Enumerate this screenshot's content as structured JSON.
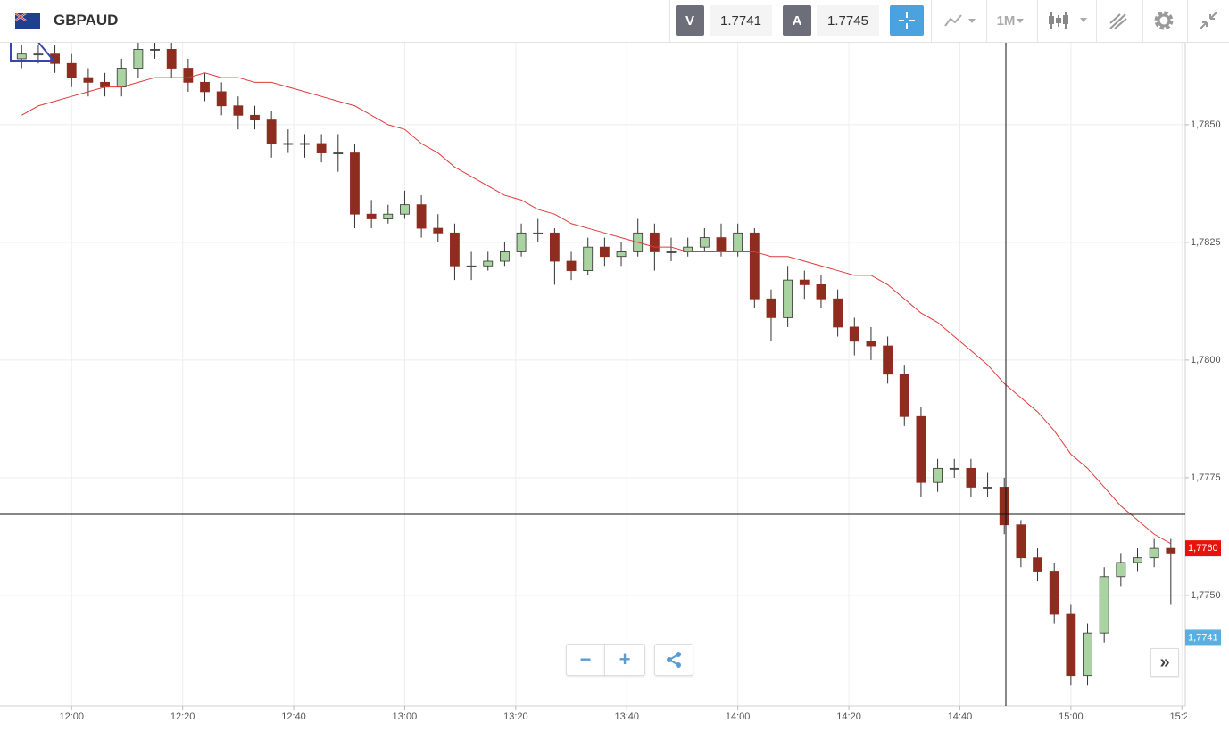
{
  "toolbar": {
    "symbol": "GBPAUD",
    "bid_label": "V",
    "bid": "1.7741",
    "ask_label": "A",
    "ask": "1.7745",
    "timeframe": "1M"
  },
  "chart_data": {
    "type": "candlestick",
    "x": [
      711,
      714,
      717,
      720,
      723,
      726,
      729,
      732,
      735,
      738,
      741,
      744,
      747,
      750,
      753,
      756,
      759,
      762,
      765,
      768,
      771,
      774,
      777,
      780,
      783,
      786,
      789,
      792,
      795,
      798,
      801,
      804,
      807,
      810,
      813,
      816,
      819,
      822,
      825,
      828,
      831,
      834,
      837,
      840,
      843,
      846,
      849,
      852,
      855,
      858,
      861,
      864,
      867,
      870,
      873,
      876,
      879,
      882,
      885,
      888,
      891,
      894,
      897,
      900,
      903,
      906,
      909,
      912,
      915,
      918
    ],
    "open": [
      1.7864,
      1.7865,
      1.7865,
      1.7863,
      1.786,
      1.7859,
      1.7858,
      1.7862,
      1.7866,
      1.7866,
      1.7862,
      1.7859,
      1.7857,
      1.7854,
      1.7852,
      1.7851,
      1.7846,
      1.7846,
      1.7846,
      1.7844,
      1.7844,
      1.7831,
      1.783,
      1.7831,
      1.7833,
      1.7828,
      1.7827,
      1.782,
      1.782,
      1.7821,
      1.7823,
      1.7827,
      1.7827,
      1.7821,
      1.7819,
      1.7824,
      1.7822,
      1.7823,
      1.7827,
      1.7823,
      1.7823,
      1.7824,
      1.7826,
      1.7823,
      1.7827,
      1.7813,
      1.7809,
      1.7817,
      1.7816,
      1.7813,
      1.7807,
      1.7804,
      1.7803,
      1.7797,
      1.7788,
      1.7774,
      1.7777,
      1.7777,
      1.7773,
      1.7773,
      1.7765,
      1.7758,
      1.7755,
      1.7746,
      1.7733,
      1.7742,
      1.7754,
      1.7757,
      1.7758,
      1.776
    ],
    "high": [
      1.7867,
      1.7867,
      1.7867,
      1.7865,
      1.7862,
      1.7861,
      1.7864,
      1.7868,
      1.7868,
      1.7868,
      1.7864,
      1.7861,
      1.7859,
      1.7856,
      1.7854,
      1.7853,
      1.7849,
      1.7848,
      1.7848,
      1.7848,
      1.7846,
      1.7834,
      1.7833,
      1.7836,
      1.7835,
      1.7831,
      1.7829,
      1.7823,
      1.7823,
      1.7825,
      1.7829,
      1.783,
      1.7828,
      1.7823,
      1.7826,
      1.7826,
      1.7825,
      1.783,
      1.7829,
      1.7826,
      1.7826,
      1.7828,
      1.7829,
      1.7829,
      1.7828,
      1.7815,
      1.782,
      1.7819,
      1.7818,
      1.7815,
      1.7809,
      1.7807,
      1.7805,
      1.7799,
      1.779,
      1.7779,
      1.7779,
      1.7779,
      1.7776,
      1.7775,
      1.7766,
      1.776,
      1.7757,
      1.7748,
      1.7744,
      1.7756,
      1.7759,
      1.776,
      1.7762,
      1.7762
    ],
    "low": [
      1.7862,
      1.7863,
      1.7861,
      1.7858,
      1.7856,
      1.7856,
      1.7856,
      1.786,
      1.7864,
      1.786,
      1.7857,
      1.7855,
      1.7852,
      1.7849,
      1.7849,
      1.7843,
      1.7844,
      1.7843,
      1.7842,
      1.784,
      1.7828,
      1.7828,
      1.7829,
      1.783,
      1.7826,
      1.7825,
      1.7817,
      1.7817,
      1.7819,
      1.782,
      1.7822,
      1.7825,
      1.7816,
      1.7817,
      1.7818,
      1.782,
      1.782,
      1.7822,
      1.7819,
      1.7821,
      1.7822,
      1.7823,
      1.7822,
      1.7822,
      1.7811,
      1.7804,
      1.7807,
      1.7813,
      1.7811,
      1.7805,
      1.7801,
      1.78,
      1.7795,
      1.7786,
      1.7771,
      1.7772,
      1.7775,
      1.7771,
      1.7771,
      1.7763,
      1.7756,
      1.7753,
      1.7744,
      1.7731,
      1.7731,
      1.774,
      1.7752,
      1.7755,
      1.7756,
      1.7748
    ],
    "close": [
      1.7865,
      1.7865,
      1.7863,
      1.786,
      1.7859,
      1.7858,
      1.7862,
      1.7866,
      1.7866,
      1.7862,
      1.7859,
      1.7857,
      1.7854,
      1.7852,
      1.7851,
      1.7846,
      1.7846,
      1.7846,
      1.7844,
      1.7844,
      1.7831,
      1.783,
      1.7831,
      1.7833,
      1.7828,
      1.7827,
      1.782,
      1.782,
      1.7821,
      1.7823,
      1.7827,
      1.7827,
      1.7821,
      1.7819,
      1.7824,
      1.7822,
      1.7823,
      1.7827,
      1.7823,
      1.7823,
      1.7824,
      1.7826,
      1.7823,
      1.7827,
      1.7813,
      1.7809,
      1.7817,
      1.7816,
      1.7813,
      1.7807,
      1.7804,
      1.7803,
      1.7797,
      1.7788,
      1.7774,
      1.7777,
      1.7777,
      1.7773,
      1.7773,
      1.7765,
      1.7758,
      1.7755,
      1.7746,
      1.7733,
      1.7742,
      1.7754,
      1.7757,
      1.7758,
      1.776,
      1.7759
    ],
    "up_color": "#a9d3a0",
    "down_color": "#8e2c20",
    "ma": {
      "color": "#e03a3a",
      "values": [
        1.7852,
        1.7854,
        1.7855,
        1.7856,
        1.7857,
        1.7858,
        1.7858,
        1.7859,
        1.786,
        1.786,
        1.786,
        1.7861,
        1.786,
        1.786,
        1.7859,
        1.7859,
        1.7858,
        1.7857,
        1.7856,
        1.7855,
        1.7854,
        1.7852,
        1.785,
        1.7849,
        1.7846,
        1.7844,
        1.7841,
        1.7839,
        1.7837,
        1.7835,
        1.7834,
        1.7832,
        1.7831,
        1.7829,
        1.7828,
        1.7827,
        1.7826,
        1.7825,
        1.7824,
        1.7824,
        1.7823,
        1.7823,
        1.7823,
        1.7823,
        1.7823,
        1.7822,
        1.7822,
        1.7821,
        1.782,
        1.7819,
        1.7818,
        1.7818,
        1.7816,
        1.7813,
        1.781,
        1.7808,
        1.7805,
        1.7802,
        1.7799,
        1.7795,
        1.7792,
        1.7789,
        1.7785,
        1.778,
        1.7777,
        1.7773,
        1.7769,
        1.7766,
        1.7763,
        1.7761
      ]
    },
    "xlim": [
      707.1,
      920.6
    ],
    "xticks": [
      {
        "value": 720,
        "label": "12:00"
      },
      {
        "value": 740,
        "label": "12:20"
      },
      {
        "value": 760,
        "label": "12:40"
      },
      {
        "value": 780,
        "label": "13:00"
      },
      {
        "value": 800,
        "label": "13:20"
      },
      {
        "value": 820,
        "label": "13:40"
      },
      {
        "value": 840,
        "label": "14:00"
      },
      {
        "value": 860,
        "label": "14:20"
      },
      {
        "value": 880,
        "label": "14:40"
      },
      {
        "value": 900,
        "label": "15:00"
      },
      {
        "value": 920,
        "label": "15:20"
      }
    ],
    "ylim": [
      1.77265,
      1.78674
    ],
    "yticks": [
      {
        "value": 1.775,
        "label": "1,7750"
      },
      {
        "value": 1.7775,
        "label": "1,7775"
      },
      {
        "value": 1.78,
        "label": "1,7800"
      },
      {
        "value": 1.7825,
        "label": "1,7825"
      },
      {
        "value": 1.785,
        "label": "1,7850"
      }
    ],
    "grid": true,
    "price_labels": [
      {
        "value": 1.776,
        "label": "1,7760",
        "color": "#e8120c"
      },
      {
        "value": 1.7741,
        "label": "1,7741",
        "color": "#5aaee0"
      }
    ]
  }
}
